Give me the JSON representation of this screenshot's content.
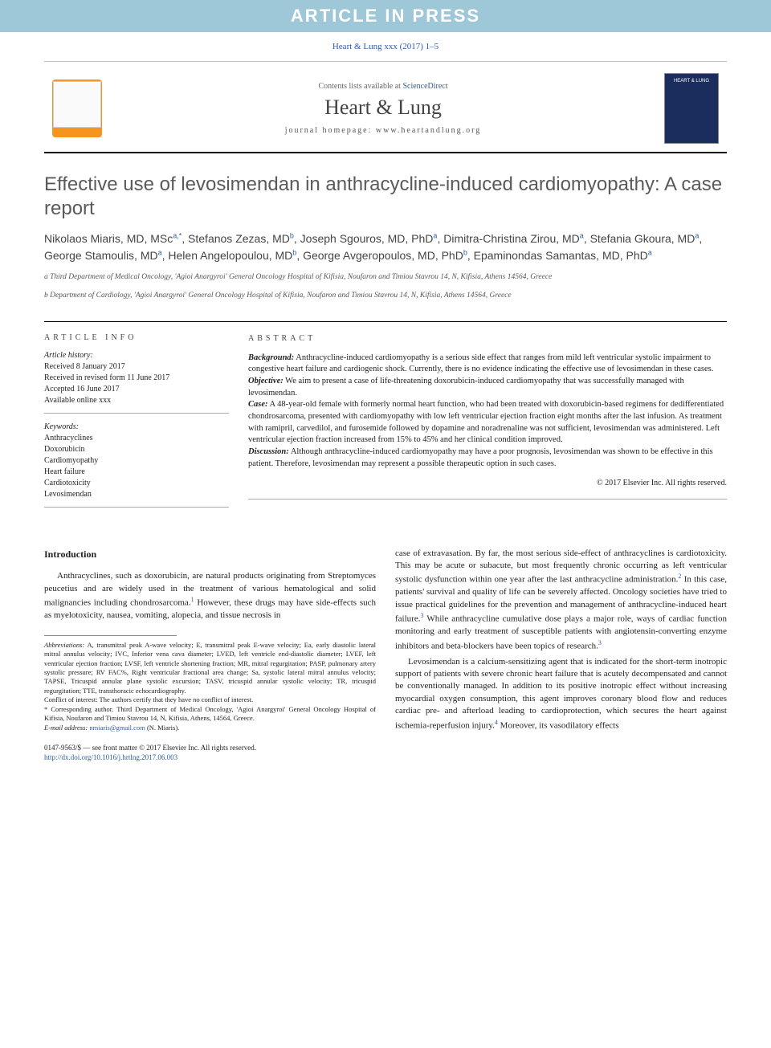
{
  "banner": "ARTICLE IN PRESS",
  "citation": "Heart & Lung xxx (2017) 1–5",
  "header": {
    "contents_prefix": "Contents lists available at ",
    "contents_link": "ScienceDirect",
    "journal": "Heart & Lung",
    "homepage_prefix": "journal homepage: ",
    "homepage": "www.heartandlung.org",
    "publisher": "ELSEVIER",
    "cover_text": "HEART & LUNG"
  },
  "title": "Effective use of levosimendan in anthracycline-induced cardiomyopathy: A case report",
  "authors_html": "Nikolaos Miaris, MD, MSc<sup class='sup'>a,*</sup>, Stefanos Zezas, MD<sup class='sup'>b</sup>, Joseph Sgouros, MD, PhD<sup class='sup'>a</sup>, Dimitra-Christina Zirou, MD<sup class='sup'>a</sup>, Stefania Gkoura, MD<sup class='sup'>a</sup>, George Stamoulis, MD<sup class='sup'>a</sup>, Helen Angelopoulou, MD<sup class='sup'>b</sup>, George Avgeropoulos, MD, PhD<sup class='sup'>b</sup>, Epaminondas Samantas, MD, PhD<sup class='sup'>a</sup>",
  "affiliations": [
    "a Third Department of Medical Oncology, 'Agioi Anargyroi' General Oncology Hospital of Kifisia, Noufaron and Timiou Stavrou 14, N, Kifisia, Athens 14564, Greece",
    "b Department of Cardiology, 'Agioi Anargyroi' General Oncology Hospital of Kifisia, Noufaron and Timiou Stavrou 14, N, Kifisia, Athens 14564, Greece"
  ],
  "article_info": {
    "heading": "ARTICLE INFO",
    "history_label": "Article history:",
    "history": [
      "Received 8 January 2017",
      "Received in revised form 11 June 2017",
      "Accepted 16 June 2017",
      "Available online xxx"
    ],
    "keywords_label": "Keywords:",
    "keywords": [
      "Anthracyclines",
      "Doxorubicin",
      "Cardiomyopathy",
      "Heart failure",
      "Cardiotoxicity",
      "Levosimendan"
    ]
  },
  "abstract": {
    "heading": "ABSTRACT",
    "sections": [
      {
        "label": "Background:",
        "text": "Anthracycline-induced cardiomyopathy is a serious side effect that ranges from mild left ventricular systolic impairment to congestive heart failure and cardiogenic shock. Currently, there is no evidence indicating the effective use of levosimendan in these cases."
      },
      {
        "label": "Objective:",
        "text": "We aim to present a case of life-threatening doxorubicin-induced cardiomyopathy that was successfully managed with levosimendan."
      },
      {
        "label": "Case:",
        "text": "A 48-year-old female with formerly normal heart function, who had been treated with doxorubicin-based regimens for dedifferentiated chondrosarcoma, presented with cardiomyopathy with low left ventricular ejection fraction eight months after the last infusion. As treatment with ramipril, carvedilol, and furosemide followed by dopamine and noradrenaline was not sufficient, levosimendan was administered. Left ventricular ejection fraction increased from 15% to 45% and her clinical condition improved."
      },
      {
        "label": "Discussion:",
        "text": "Although anthracycline-induced cardiomyopathy may have a poor prognosis, levosimendan was shown to be effective in this patient. Therefore, levosimendan may represent a possible therapeutic option in such cases."
      }
    ],
    "copyright": "© 2017 Elsevier Inc. All rights reserved."
  },
  "body": {
    "intro_head": "Introduction",
    "col1": "Anthracyclines, such as doxorubicin, are natural products originating from Streptomyces peucetius and are widely used in the treatment of various hematological and solid malignancies including chondrosarcoma.<sup class='ref-sup'>1</sup> However, these drugs may have side-effects such as myelotoxicity, nausea, vomiting, alopecia, and tissue necrosis in",
    "col2": "case of extravasation. By far, the most serious side-effect of anthracyclines is cardiotoxicity. This may be acute or subacute, but most frequently chronic occurring as left ventricular systolic dysfunction within one year after the last anthracycline administration.<sup class='ref-sup'>2</sup> In this case, patients' survival and quality of life can be severely affected. Oncology societies have tried to issue practical guidelines for the prevention and management of anthracycline-induced heart failure.<sup class='ref-sup'>3</sup> While anthracycline cumulative dose plays a major role, ways of cardiac function monitoring and early treatment of susceptible patients with angiotensin-converting enzyme inhibitors and beta-blockers have been topics of research.<sup class='ref-sup'>3</sup>",
    "col2b": "Levosimendan is a calcium-sensitizing agent that is indicated for the short-term inotropic support of patients with severe chronic heart failure that is acutely decompensated and cannot be conventionally managed. In addition to its positive inotropic effect without increasing myocardial oxygen consumption, this agent improves coronary blood flow and reduces cardiac pre- and afterload leading to cardioprotection, which secures the heart against ischemia-reperfusion injury.<sup class='ref-sup'>4</sup> Moreover, its vasodilatory effects"
  },
  "footnotes": {
    "abbrev_label": "Abbreviations:",
    "abbrev": "A, transmitral peak A-wave velocity; E, transmitral peak E-wave velocity; Ea, early diastolic lateral mitral annulus velocity; IVC, Inferior vena cava diameter; LVED, left ventricle end-diastolic diameter; LVEF, left ventricular ejection fraction; LVSF, left ventricle shortening fraction; MR, mitral regurgitation; PASP, pulmonary artery systolic pressure; RV FAC%, Right ventricular fractional area change; Sa, systolic lateral mitral annulus velocity; TAPSE, Tricuspid annular plane systolic excursion; TASV, tricuspid annular systolic velocity; TR, tricuspid regurgitation; TTE, transthoracic echocardiography.",
    "coi": "Conflict of interest:  The authors certify that they have no conflict of interest.",
    "corr": "* Corresponding author. Third Department of Medical Oncology, 'Agioi Anargyroi' General Oncology Hospital of Kifisia, Noufaron and Timiou Stavrou 14, N, Kifisia, Athens, 14564, Greece.",
    "email_label": "E-mail address:",
    "email": "nmiaris@gmail.com",
    "email_suffix": "(N. Miaris)."
  },
  "doi": {
    "line1": "0147-9563/$ — see front matter © 2017 Elsevier Inc. All rights reserved.",
    "line2": "http://dx.doi.org/10.1016/j.hrtlng.2017.06.003"
  },
  "colors": {
    "banner_bg": "#9ec7d8",
    "link": "#2a5caa",
    "logo": "#f7941e",
    "cover": "#1a2d5c",
    "title": "#5a5a5a"
  }
}
